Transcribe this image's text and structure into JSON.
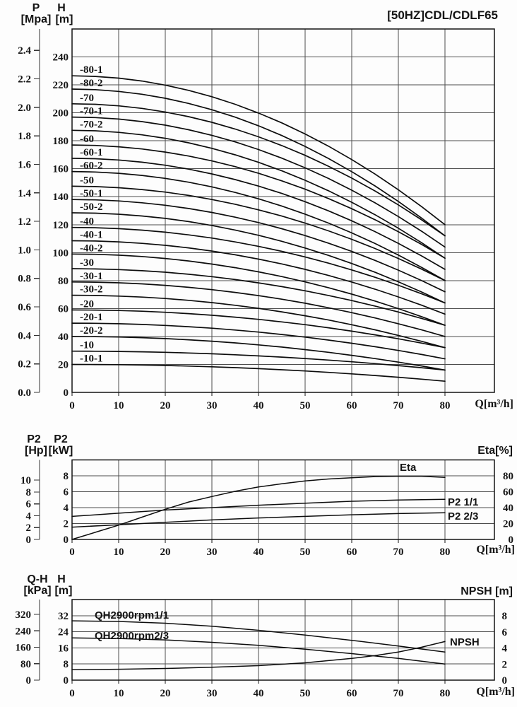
{
  "page": {
    "bg": "#fdfdfd",
    "title": "[50HZ]CDL/CDLF65"
  },
  "chart_data": [
    {
      "id": "qh-multistage-curves",
      "type": "line",
      "title": "[50HZ]CDL/CDLF65",
      "x_axis": {
        "label": "Q[m³/h]",
        "ticks": [
          0,
          10,
          20,
          30,
          40,
          50,
          60,
          70,
          80
        ],
        "min": 0,
        "max": 90
      },
      "y_axis": {
        "name": "H",
        "unit": "[m]",
        "ticks": [
          0,
          20,
          40,
          60,
          80,
          100,
          120,
          140,
          160,
          180,
          200,
          220,
          240
        ],
        "min": 0,
        "max": 260
      },
      "y_axis2": {
        "name": "P",
        "unit": "[Mpa]",
        "ticks": [
          "0.0",
          "0.2",
          "0.4",
          "0.6",
          "0.8",
          "1.0",
          "1.2",
          "1.4",
          "1.6",
          "1.8",
          "2.0",
          "2.2",
          "2.4"
        ]
      },
      "curve_model": "H(q) = h_shutoff - (h_shutoff - h_at_80)*(q/80)^2, q in m3/h, H in m",
      "series": [
        {
          "label": "-80-1",
          "h_shutoff": 226.5,
          "h_at_80": 120
        },
        {
          "label": "-80-2",
          "h_shutoff": 217.0,
          "h_at_80": 112
        },
        {
          "label": "-70",
          "h_shutoff": 206.5,
          "h_at_80": 112
        },
        {
          "label": "-70-1",
          "h_shutoff": 197.0,
          "h_at_80": 104
        },
        {
          "label": "-70-2",
          "h_shutoff": 187.5,
          "h_at_80": 96
        },
        {
          "label": "-60",
          "h_shutoff": 177.0,
          "h_at_80": 96
        },
        {
          "label": "-60-1",
          "h_shutoff": 167.5,
          "h_at_80": 88
        },
        {
          "label": "-60-2",
          "h_shutoff": 158.0,
          "h_at_80": 80
        },
        {
          "label": "-50",
          "h_shutoff": 147.5,
          "h_at_80": 80
        },
        {
          "label": "-50-1",
          "h_shutoff": 138.0,
          "h_at_80": 72
        },
        {
          "label": "-50-2",
          "h_shutoff": 128.5,
          "h_at_80": 64
        },
        {
          "label": "-40",
          "h_shutoff": 118.0,
          "h_at_80": 64
        },
        {
          "label": "-40-1",
          "h_shutoff": 108.5,
          "h_at_80": 56
        },
        {
          "label": "-40-2",
          "h_shutoff": 99.0,
          "h_at_80": 48
        },
        {
          "label": "-30",
          "h_shutoff": 88.5,
          "h_at_80": 48
        },
        {
          "label": "-30-1",
          "h_shutoff": 79.0,
          "h_at_80": 40
        },
        {
          "label": "-30-2",
          "h_shutoff": 69.5,
          "h_at_80": 32
        },
        {
          "label": "-20",
          "h_shutoff": 59.0,
          "h_at_80": 32
        },
        {
          "label": "-20-1",
          "h_shutoff": 49.5,
          "h_at_80": 24
        },
        {
          "label": "-20-2",
          "h_shutoff": 40.0,
          "h_at_80": 16
        },
        {
          "label": "-10",
          "h_shutoff": 29.5,
          "h_at_80": 16
        },
        {
          "label": "-10-1",
          "h_shutoff": 20.0,
          "h_at_80": 8
        }
      ]
    },
    {
      "id": "power-and-efficiency",
      "type": "line",
      "x_axis": {
        "label": "Q[m³/h]",
        "ticks": [
          0,
          10,
          20,
          30,
          40,
          50,
          60,
          70,
          80
        ],
        "min": 0,
        "max": 90
      },
      "y_axis": {
        "name": "P2",
        "unit": "[kW]",
        "ticks": [
          0,
          2,
          4,
          6,
          8
        ],
        "min": 0,
        "max": 10
      },
      "y_axis2": {
        "name": "P2",
        "unit": "[Hp]",
        "ticks": [
          0,
          2,
          4,
          6,
          8,
          10
        ]
      },
      "right_axis": {
        "label": "Eta[%]",
        "ticks": [
          0,
          20,
          40,
          60,
          80
        ],
        "min": 0,
        "max": 100
      },
      "series": [
        {
          "label": "Eta",
          "scale": "right",
          "points": [
            [
              0,
              0
            ],
            [
              5,
              9
            ],
            [
              10,
              18
            ],
            [
              15,
              28
            ],
            [
              20,
              38
            ],
            [
              25,
              47
            ],
            [
              30,
              54
            ],
            [
              35,
              60.5
            ],
            [
              40,
              66
            ],
            [
              45,
              70
            ],
            [
              50,
              73.5
            ],
            [
              55,
              76
            ],
            [
              60,
              77.5
            ],
            [
              65,
              79
            ],
            [
              70,
              79.5
            ],
            [
              75,
              79.5
            ],
            [
              80,
              78
            ]
          ]
        },
        {
          "label": "P2 1/1",
          "scale": "main",
          "points": [
            [
              0,
              2.9
            ],
            [
              10,
              3.3
            ],
            [
              20,
              3.7
            ],
            [
              30,
              4.0
            ],
            [
              40,
              4.3
            ],
            [
              50,
              4.55
            ],
            [
              60,
              4.8
            ],
            [
              70,
              4.95
            ],
            [
              80,
              5.05
            ]
          ]
        },
        {
          "label": "P2 2/3",
          "scale": "main",
          "points": [
            [
              0,
              1.55
            ],
            [
              10,
              1.85
            ],
            [
              20,
              2.15
            ],
            [
              30,
              2.45
            ],
            [
              40,
              2.7
            ],
            [
              50,
              2.9
            ],
            [
              60,
              3.1
            ],
            [
              70,
              3.25
            ],
            [
              80,
              3.35
            ]
          ]
        }
      ]
    },
    {
      "id": "single-stage-qh-and-npsh",
      "type": "line",
      "x_axis": {
        "label": "Q[m³/h]",
        "ticks": [
          0,
          10,
          20,
          30,
          40,
          50,
          60,
          70,
          80
        ],
        "min": 0,
        "max": 90
      },
      "y_axis": {
        "name": "H",
        "unit": "[m]",
        "ticks": [
          0,
          8,
          16,
          24,
          32
        ],
        "min": 0,
        "max": 40
      },
      "y_axis2": {
        "name": "Q-H",
        "unit": "[kPa]",
        "ticks": [
          0,
          80,
          160,
          240,
          320
        ]
      },
      "right_axis": {
        "label": "NPSH [m]",
        "ticks": [
          0,
          2,
          4,
          6,
          8
        ],
        "min": 0,
        "max": 10
      },
      "series": [
        {
          "label": "QH2900rpm1/1",
          "scale": "main",
          "points": [
            [
              0,
              29.5
            ],
            [
              10,
              29.2
            ],
            [
              20,
              28.3
            ],
            [
              30,
              26.8
            ],
            [
              40,
              24.8
            ],
            [
              50,
              22.4
            ],
            [
              60,
              19.8
            ],
            [
              70,
              17
            ],
            [
              80,
              14
            ]
          ]
        },
        {
          "label": "QH2900rpm2/3",
          "scale": "main",
          "points": [
            [
              0,
              21
            ],
            [
              10,
              20.7
            ],
            [
              20,
              20
            ],
            [
              30,
              18.8
            ],
            [
              40,
              17.3
            ],
            [
              50,
              15.4
            ],
            [
              60,
              13.2
            ],
            [
              70,
              10.8
            ],
            [
              80,
              8
            ]
          ]
        },
        {
          "label": "NPSH",
          "scale": "right",
          "points": [
            [
              0,
              1.3
            ],
            [
              10,
              1.35
            ],
            [
              20,
              1.45
            ],
            [
              30,
              1.6
            ],
            [
              40,
              1.8
            ],
            [
              50,
              2.15
            ],
            [
              60,
              2.7
            ],
            [
              65,
              3.05
            ],
            [
              70,
              3.5
            ],
            [
              75,
              4.1
            ],
            [
              80,
              4.8
            ]
          ]
        }
      ]
    }
  ]
}
